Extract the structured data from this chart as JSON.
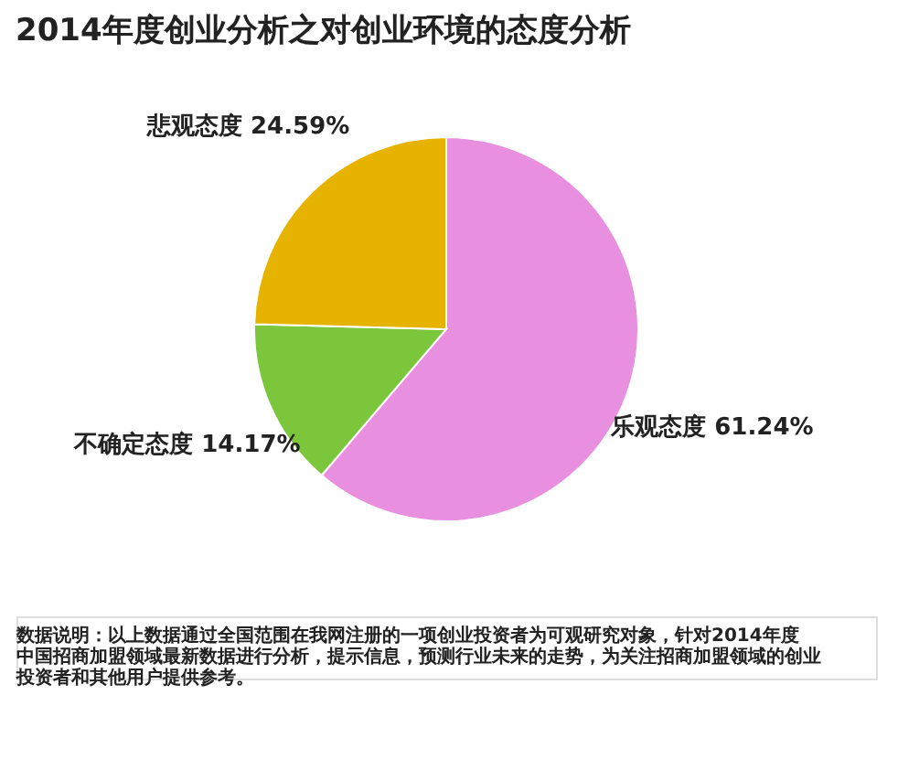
{
  "chart_data": {
    "type": "pie",
    "title": "2014年度创业分析之对创业环境的态度分析",
    "categories": [
      "乐观态度",
      "不确定态度",
      "悲观态度"
    ],
    "values": [
      61.24,
      14.17,
      24.59
    ],
    "value_labels": [
      "61.24%",
      "14.17%",
      "24.59%"
    ],
    "colors": [
      "#e98fe0",
      "#7cc63b",
      "#e6b400"
    ],
    "legend": false,
    "annotations": [
      "数据说明：以上数据通过全国范围在我网注册的一项创业投资者为可观研究对象，针对2014年度中国招商加盟领域最新数据进行分析，提示信息，预测行业未来的走势，为关注招商加盟领域的创业投资者和其他用户提供参考。"
    ]
  }
}
